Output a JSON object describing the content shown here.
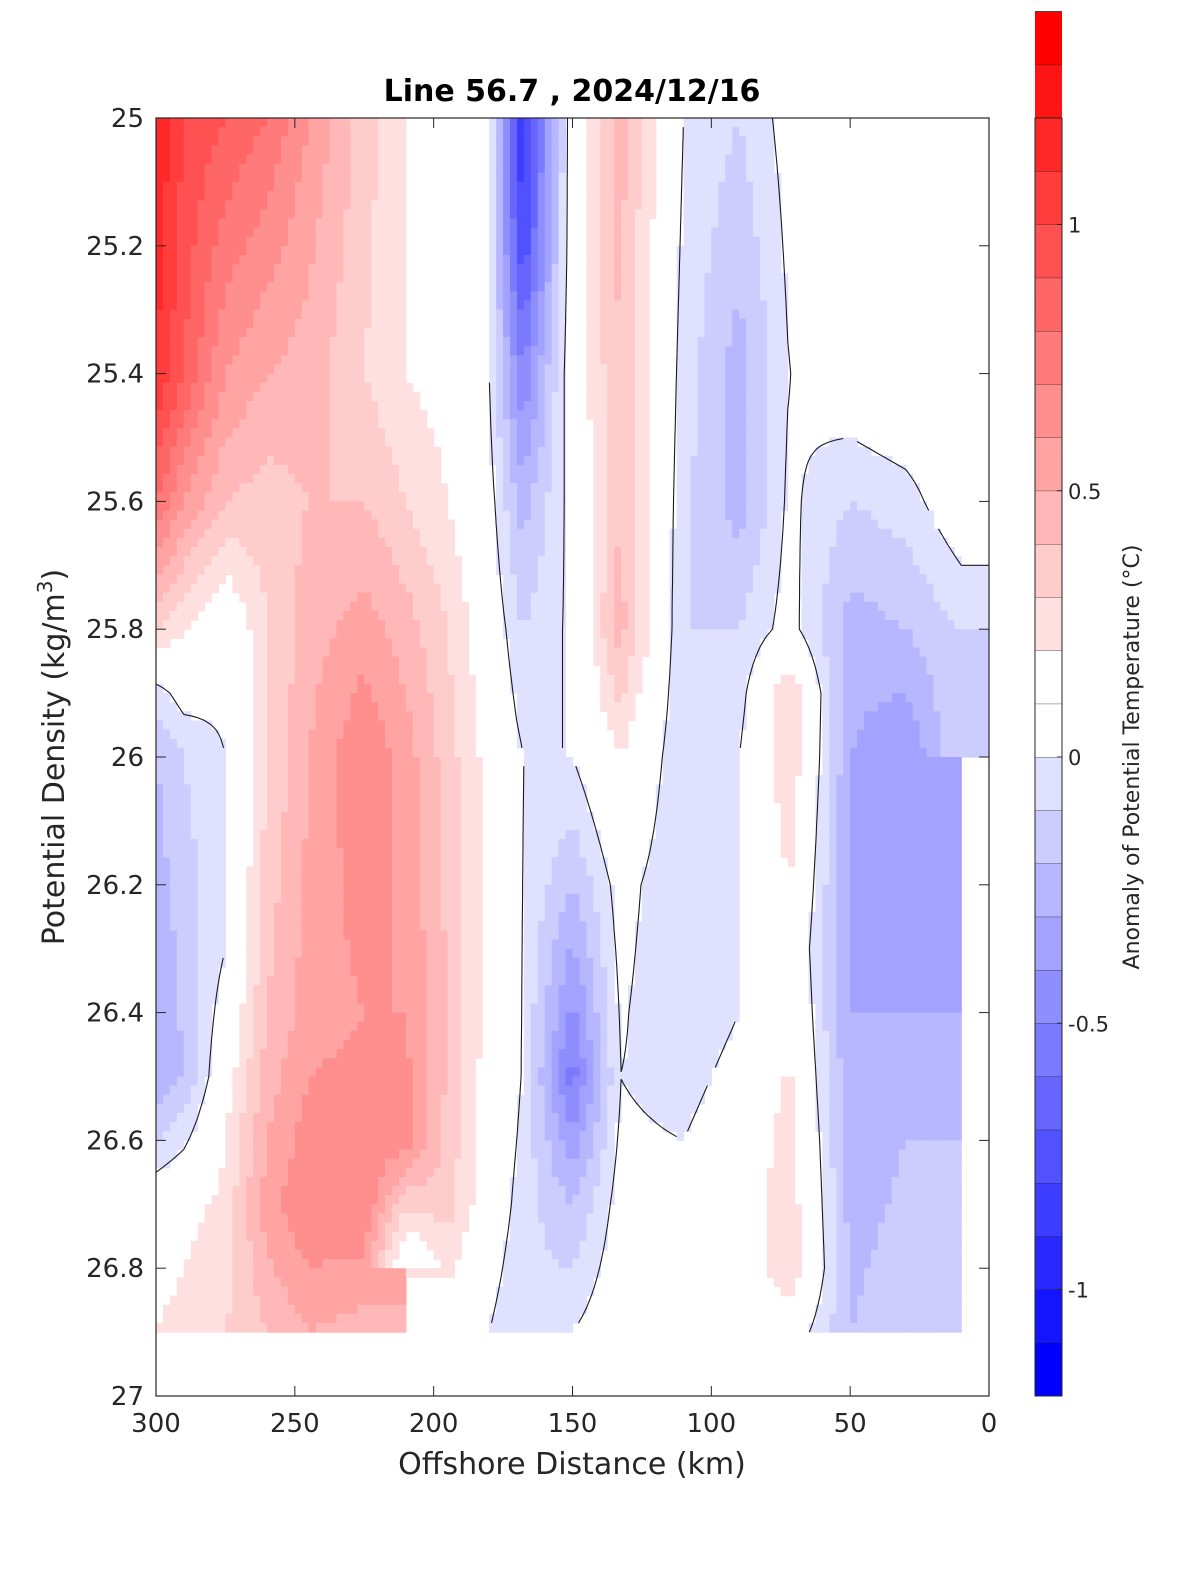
{
  "chart_data": {
    "type": "heatmap",
    "subtype": "filled-contour",
    "title": "Line 56.7 , 2024/12/16",
    "xlabel": "Offshore Distance (km)",
    "ylabel": "Potential Density (kg/m³)",
    "ylabel_parts": {
      "text": "Potential Density (kg/m",
      "sup": "3",
      "close": ")"
    },
    "colorbar_label": "Anomaly of Potential Temperature (°C)",
    "x_reversed": true,
    "y_reversed": true,
    "xlim": [
      300,
      0
    ],
    "ylim": [
      25,
      27
    ],
    "x_ticks": [
      300,
      250,
      200,
      150,
      100,
      50,
      0
    ],
    "x_tick_labels": [
      "300",
      "250",
      "200",
      "150",
      "100",
      "50",
      "0"
    ],
    "y_ticks": [
      25,
      25.2,
      25.4,
      25.6,
      25.8,
      26,
      26.2,
      26.4,
      26.6,
      26.8,
      27
    ],
    "y_tick_labels": [
      "25",
      "25.2",
      "25.4",
      "25.6",
      "25.8",
      "26",
      "26.2",
      "26.4",
      "26.6",
      "26.8",
      "27"
    ],
    "colorbar": {
      "range": [
        -1.2,
        1.2
      ],
      "level_step": 0.1,
      "ticks": [
        -1,
        -0.5,
        0,
        0.5,
        1
      ],
      "tick_labels": [
        "-1",
        "-0.5",
        "0",
        "0.5",
        "1"
      ],
      "colors_low_to_high": [
        "#0000ff",
        "#1414ff",
        "#2828ff",
        "#3d3dff",
        "#5151ff",
        "#6666ff",
        "#7a7aff",
        "#8e8eff",
        "#a3a3ff",
        "#b7b7ff",
        "#ccccff",
        "#e0e0ff",
        "#ffffff",
        "#ffffff",
        "#ffe0e0",
        "#ffcccc",
        "#ffb7b7",
        "#ffa3a3",
        "#ff8e8e",
        "#ff7a7a",
        "#ff6666",
        "#ff5151",
        "#ff3d3d",
        "#ff2828",
        "#ff1414",
        "#ff0000"
      ]
    },
    "contour_levels": [
      0
    ],
    "grid": false,
    "data_columns": [
      {
        "x": 300,
        "samples": [
          [
            25.0,
            1.2
          ],
          [
            25.4,
            1.1
          ],
          [
            25.6,
            0.8
          ],
          [
            25.8,
            0.3
          ],
          [
            25.9,
            -0.05
          ],
          [
            26.0,
            -0.2
          ],
          [
            26.2,
            -0.25
          ],
          [
            26.5,
            -0.3
          ],
          [
            26.7,
            0.1
          ],
          [
            26.9,
            0.2
          ]
        ]
      },
      {
        "x": 290,
        "samples": [
          [
            25.0,
            1.0
          ],
          [
            25.4,
            0.9
          ],
          [
            25.6,
            0.6
          ],
          [
            25.8,
            0.2
          ],
          [
            26.0,
            -0.1
          ],
          [
            26.2,
            -0.15
          ],
          [
            26.5,
            -0.2
          ],
          [
            26.7,
            0.15
          ],
          [
            26.9,
            0.25
          ]
        ]
      },
      {
        "x": 275,
        "samples": [
          [
            25.0,
            0.9
          ],
          [
            25.4,
            0.6
          ],
          [
            25.6,
            0.4
          ],
          [
            25.8,
            0.05
          ],
          [
            26.0,
            0.0
          ],
          [
            26.3,
            0.0
          ],
          [
            26.6,
            0.2
          ],
          [
            26.9,
            0.3
          ]
        ]
      },
      {
        "x": 260,
        "samples": [
          [
            25.0,
            0.8
          ],
          [
            25.4,
            0.5
          ],
          [
            25.6,
            0.35
          ],
          [
            25.8,
            0.3
          ],
          [
            26.0,
            0.3
          ],
          [
            26.4,
            0.4
          ],
          [
            26.7,
            0.55
          ],
          [
            26.9,
            0.4
          ]
        ]
      },
      {
        "x": 245,
        "samples": [
          [
            25.0,
            0.6
          ],
          [
            25.4,
            0.45
          ],
          [
            25.6,
            0.4
          ],
          [
            25.8,
            0.45
          ],
          [
            26.0,
            0.5
          ],
          [
            26.4,
            0.55
          ],
          [
            26.7,
            0.7
          ],
          [
            26.9,
            0.5
          ]
        ]
      },
      {
        "x": 225,
        "samples": [
          [
            25.0,
            0.35
          ],
          [
            25.4,
            0.3
          ],
          [
            25.6,
            0.4
          ],
          [
            25.8,
            0.55
          ],
          [
            26.0,
            0.7
          ],
          [
            26.4,
            0.6
          ],
          [
            26.7,
            0.7
          ],
          [
            26.9,
            0.45
          ]
        ]
      },
      {
        "x": 210,
        "samples": [
          [
            25.0,
            0.2
          ],
          [
            25.4,
            0.2
          ],
          [
            25.6,
            0.3
          ],
          [
            25.8,
            0.45
          ],
          [
            26.0,
            0.55
          ],
          [
            26.4,
            0.6
          ],
          [
            26.6,
            0.65
          ],
          [
            26.8,
            0.0
          ]
        ]
      },
      {
        "x": 195,
        "samples": [
          [
            25.0,
            0.1
          ],
          [
            25.4,
            0.15
          ],
          [
            25.6,
            0.2
          ],
          [
            25.8,
            0.3
          ],
          [
            26.0,
            0.35
          ],
          [
            26.4,
            0.4
          ],
          [
            26.7,
            0.35
          ],
          [
            26.9,
            0.1
          ]
        ]
      },
      {
        "x": 180,
        "samples": [
          [
            25.0,
            0.0
          ],
          [
            25.4,
            0.0
          ],
          [
            25.6,
            0.05
          ],
          [
            25.8,
            0.1
          ],
          [
            26.0,
            0.15
          ],
          [
            26.4,
            0.15
          ],
          [
            26.7,
            0.1
          ],
          [
            26.9,
            0.0
          ]
        ]
      },
      {
        "x": 168,
        "samples": [
          [
            25.0,
            -0.9
          ],
          [
            25.2,
            -0.8
          ],
          [
            25.4,
            -0.5
          ],
          [
            25.6,
            -0.25
          ],
          [
            25.8,
            -0.1
          ],
          [
            26.0,
            0.0
          ],
          [
            26.5,
            0.0
          ],
          [
            26.9,
            -0.1
          ]
        ]
      },
      {
        "x": 150,
        "samples": [
          [
            25.0,
            0.1
          ],
          [
            25.4,
            0.1
          ],
          [
            25.6,
            0.05
          ],
          [
            26.0,
            0.0
          ],
          [
            26.2,
            -0.2
          ],
          [
            26.5,
            -0.55
          ],
          [
            26.7,
            -0.2
          ],
          [
            26.9,
            0.0
          ]
        ]
      },
      {
        "x": 133,
        "samples": [
          [
            25.0,
            0.45
          ],
          [
            25.4,
            0.4
          ],
          [
            25.6,
            0.4
          ],
          [
            25.8,
            0.45
          ],
          [
            26.0,
            0.2
          ],
          [
            26.2,
            0.05
          ],
          [
            26.5,
            0.0
          ],
          [
            26.9,
            0.1
          ]
        ]
      },
      {
        "x": 110,
        "samples": [
          [
            25.0,
            0.0
          ],
          [
            25.4,
            -0.05
          ],
          [
            25.8,
            -0.1
          ],
          [
            26.0,
            -0.1
          ],
          [
            26.4,
            -0.1
          ],
          [
            26.6,
            0.0
          ],
          [
            26.9,
            0.0
          ]
        ]
      },
      {
        "x": 90,
        "samples": [
          [
            25.0,
            -0.1
          ],
          [
            25.4,
            -0.25
          ],
          [
            25.6,
            -0.25
          ],
          [
            25.8,
            -0.1
          ],
          [
            26.0,
            0.0
          ],
          [
            26.4,
            0.0
          ],
          [
            26.6,
            0.1
          ],
          [
            26.9,
            0.1
          ]
        ]
      },
      {
        "x": 72,
        "samples": [
          [
            25.0,
            0.05
          ],
          [
            25.4,
            0.0
          ],
          [
            25.8,
            0.05
          ],
          [
            25.9,
            0.3
          ],
          [
            26.0,
            0.3
          ],
          [
            26.3,
            0.15
          ],
          [
            26.6,
            0.25
          ],
          [
            26.8,
            0.3
          ],
          [
            26.9,
            0.1
          ]
        ]
      },
      {
        "x": 50,
        "samples": [
          [
            25.0,
            0.2
          ],
          [
            25.4,
            0.1
          ],
          [
            25.6,
            -0.1
          ],
          [
            25.8,
            -0.25
          ],
          [
            26.0,
            -0.3
          ],
          [
            26.4,
            -0.3
          ],
          [
            26.6,
            -0.25
          ],
          [
            26.9,
            -0.2
          ]
        ]
      },
      {
        "x": 30,
        "samples": [
          [
            25.0,
            0.2
          ],
          [
            25.4,
            0.15
          ],
          [
            25.6,
            -0.05
          ],
          [
            25.8,
            -0.2
          ],
          [
            26.0,
            -0.4
          ],
          [
            26.4,
            -0.3
          ],
          [
            26.6,
            -0.2
          ],
          [
            26.9,
            -0.15
          ]
        ]
      },
      {
        "x": 10,
        "samples": [
          [
            25.2,
            0.15
          ],
          [
            25.6,
            0.1
          ],
          [
            25.8,
            -0.1
          ],
          [
            26.0,
            -0.1
          ]
        ]
      }
    ]
  }
}
